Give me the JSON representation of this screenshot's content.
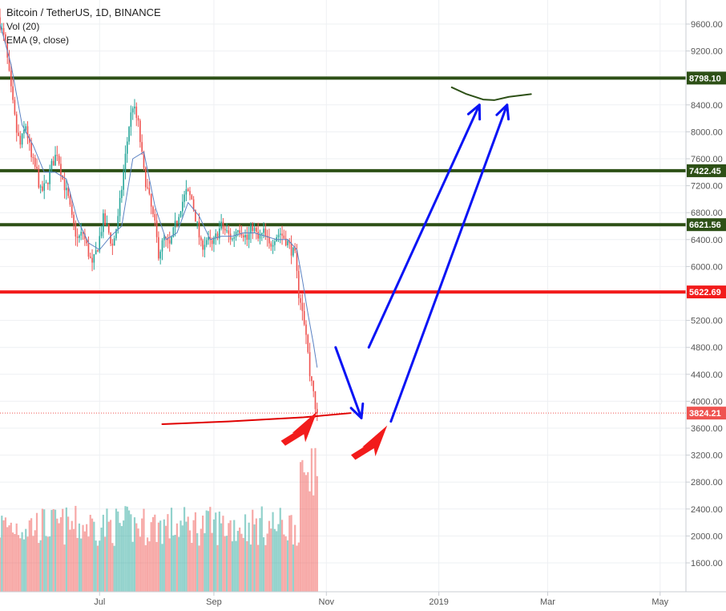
{
  "chart_data": {
    "type": "candlestick",
    "title": "Bitcoin / TetherUS, 1D, BINANCE",
    "indicators": [
      "Vol (20)",
      "EMA (9, close)"
    ],
    "ylim": [
      1300,
      9950
    ],
    "y_ticks": [
      "9600.00",
      "9200.00",
      "8800.00",
      "8400.00",
      "8000.00",
      "7600.00",
      "7200.00",
      "6800.00",
      "6400.00",
      "6000.00",
      "5600.00",
      "5200.00",
      "4800.00",
      "4400.00",
      "4000.00",
      "3600.00",
      "3200.00",
      "2800.00",
      "2400.00",
      "2000.00",
      "1600.00"
    ],
    "x_ticks": [
      {
        "label": "Jul",
        "t": 30
      },
      {
        "label": "Sep",
        "t": 92
      },
      {
        "label": "Nov",
        "t": 153
      },
      {
        "label": "2019",
        "t": 214
      },
      {
        "label": "Mar",
        "t": 273
      },
      {
        "label": "May",
        "t": 334
      }
    ],
    "xlim": [
      -24,
      348
    ],
    "last_price": {
      "value": 3824.21,
      "label": "3824.21",
      "color": "#ef5350"
    },
    "levels": [
      {
        "value": 8798.1,
        "label": "8798.10",
        "color": "#2d5016"
      },
      {
        "value": 7422.45,
        "label": "7422.45",
        "color": "#2d5016"
      },
      {
        "value": 6621.56,
        "label": "6621.56",
        "color": "#2d5016"
      },
      {
        "value": 5622.69,
        "label": "5622.69",
        "color": "#f21b1b"
      }
    ],
    "price_path": [
      [
        -24,
        9700
      ],
      [
        -20,
        9300
      ],
      [
        -17,
        8600
      ],
      [
        -14,
        8000
      ],
      [
        -12,
        7800
      ],
      [
        -9,
        8100
      ],
      [
        -6,
        7600
      ],
      [
        -3,
        7400
      ],
      [
        -1,
        7100
      ],
      [
        2,
        7200
      ],
      [
        5,
        7500
      ],
      [
        8,
        7700
      ],
      [
        11,
        7300
      ],
      [
        14,
        7000
      ],
      [
        16,
        6700
      ],
      [
        19,
        6400
      ],
      [
        22,
        6500
      ],
      [
        25,
        6200
      ],
      [
        27,
        6000
      ],
      [
        30,
        6300
      ],
      [
        33,
        6700
      ],
      [
        36,
        6500
      ],
      [
        38,
        6300
      ],
      [
        41,
        6700
      ],
      [
        44,
        7400
      ],
      [
        47,
        8100
      ],
      [
        49,
        8400
      ],
      [
        52,
        8100
      ],
      [
        55,
        7400
      ],
      [
        58,
        7000
      ],
      [
        61,
        6600
      ],
      [
        63,
        6200
      ],
      [
        66,
        6400
      ],
      [
        69,
        6300
      ],
      [
        72,
        6600
      ],
      [
        75,
        6900
      ],
      [
        78,
        7100
      ],
      [
        81,
        7000
      ],
      [
        84,
        6600
      ],
      [
        86,
        6300
      ],
      [
        89,
        6400
      ],
      [
        92,
        6300
      ],
      [
        95,
        6500
      ],
      [
        97,
        6600
      ],
      [
        100,
        6500
      ],
      [
        103,
        6400
      ],
      [
        106,
        6600
      ],
      [
        109,
        6500
      ],
      [
        111,
        6400
      ],
      [
        114,
        6600
      ],
      [
        117,
        6400
      ],
      [
        120,
        6500
      ],
      [
        123,
        6300
      ],
      [
        126,
        6450
      ],
      [
        129,
        6500
      ],
      [
        132,
        6400
      ],
      [
        134,
        6300
      ],
      [
        137,
        6150
      ],
      [
        139,
        5600
      ],
      [
        141,
        5400
      ],
      [
        143,
        5000
      ],
      [
        145,
        4400
      ],
      [
        147,
        4200
      ],
      [
        148,
        3824
      ]
    ],
    "ema_path": [
      [
        -24,
        9600
      ],
      [
        -18,
        9000
      ],
      [
        -12,
        8100
      ],
      [
        -6,
        7800
      ],
      [
        0,
        7400
      ],
      [
        6,
        7400
      ],
      [
        12,
        7300
      ],
      [
        18,
        6700
      ],
      [
        24,
        6350
      ],
      [
        30,
        6250
      ],
      [
        36,
        6450
      ],
      [
        42,
        6600
      ],
      [
        48,
        7600
      ],
      [
        54,
        7700
      ],
      [
        60,
        6900
      ],
      [
        66,
        6400
      ],
      [
        72,
        6500
      ],
      [
        78,
        6950
      ],
      [
        84,
        6750
      ],
      [
        90,
        6400
      ],
      [
        96,
        6450
      ],
      [
        102,
        6450
      ],
      [
        108,
        6500
      ],
      [
        114,
        6500
      ],
      [
        120,
        6450
      ],
      [
        126,
        6400
      ],
      [
        132,
        6400
      ],
      [
        137,
        6250
      ],
      [
        140,
        5800
      ],
      [
        143,
        5300
      ],
      [
        146,
        4850
      ],
      [
        148,
        4500
      ]
    ],
    "volume_range": [
      1500,
      3300
    ],
    "annotations": [
      {
        "type": "arrow",
        "color": "#0a14f5",
        "points": [
          [
            158,
            4800
          ],
          [
            172,
            3750
          ]
        ]
      },
      {
        "type": "arrow",
        "color": "#0a14f5",
        "points": [
          [
            176,
            4800
          ],
          [
            236,
            8400
          ]
        ]
      },
      {
        "type": "arrow",
        "color": "#0a14f5",
        "points": [
          [
            188,
            3700
          ],
          [
            251,
            8400
          ]
        ]
      },
      {
        "type": "curve",
        "color": "#2d5016",
        "points": [
          [
            221,
            8660
          ],
          [
            229,
            8560
          ],
          [
            238,
            8480
          ],
          [
            244,
            8470
          ],
          [
            252,
            8520
          ],
          [
            264,
            8560
          ]
        ]
      },
      {
        "type": "curve",
        "color": "#e00000",
        "points": [
          [
            64,
            3660
          ],
          [
            100,
            3700
          ],
          [
            140,
            3760
          ],
          [
            166,
            3824
          ]
        ]
      },
      {
        "type": "hand-arrow",
        "color": "#f21b1b",
        "at": [
          148,
          3850
        ],
        "angle": -135
      },
      {
        "type": "hand-arrow",
        "color": "#f21b1b",
        "at": [
          186,
          3640
        ],
        "angle": -135
      }
    ],
    "colors": {
      "up": "#26a69a",
      "down": "#ef5350",
      "ema": "#5b82c3",
      "grid": "#eef0f3"
    }
  }
}
